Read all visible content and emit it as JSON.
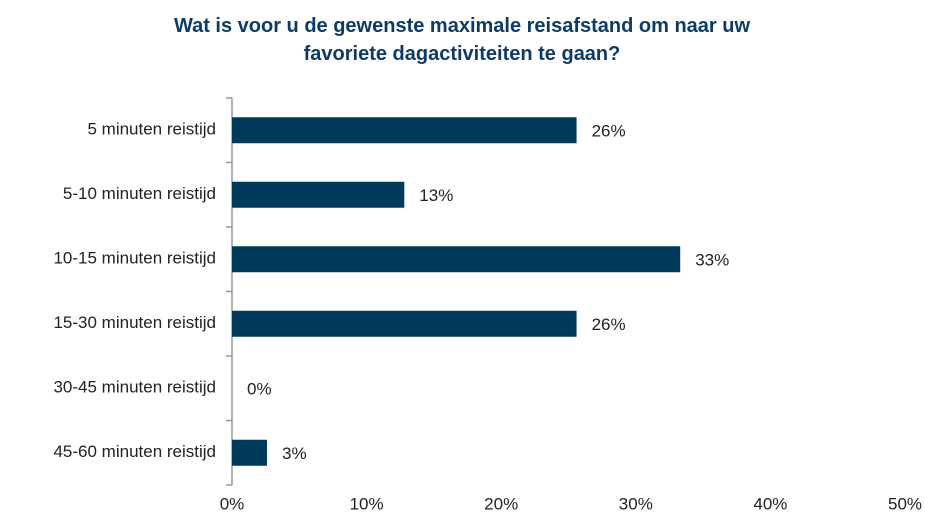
{
  "chart_data": {
    "type": "bar",
    "orientation": "horizontal",
    "title": "Wat is voor u de gewenste maximale reisafstand om naar uw favoriete dagactiviteiten te gaan?",
    "categories": [
      "5 minuten reistijd",
      "5-10 minuten reistijd",
      "10-15 minuten reistijd",
      "15-30 minuten reistijd",
      "30-45 minuten reistijd",
      "45-60 minuten reistijd"
    ],
    "values": [
      25.6,
      12.8,
      33.3,
      25.6,
      0,
      2.6
    ],
    "value_labels": [
      "26%",
      "13%",
      "33%",
      "26%",
      "0%",
      "3%"
    ],
    "color": "#003b5c",
    "xlim": [
      0,
      50
    ],
    "xticks": [
      {
        "value": 0,
        "label": "0%"
      },
      {
        "value": 10,
        "label": "10%"
      },
      {
        "value": 20,
        "label": "20%"
      },
      {
        "value": 30,
        "label": "30%"
      },
      {
        "value": 40,
        "label": "40%"
      },
      {
        "value": 50,
        "label": "50%"
      }
    ],
    "grid": false
  }
}
